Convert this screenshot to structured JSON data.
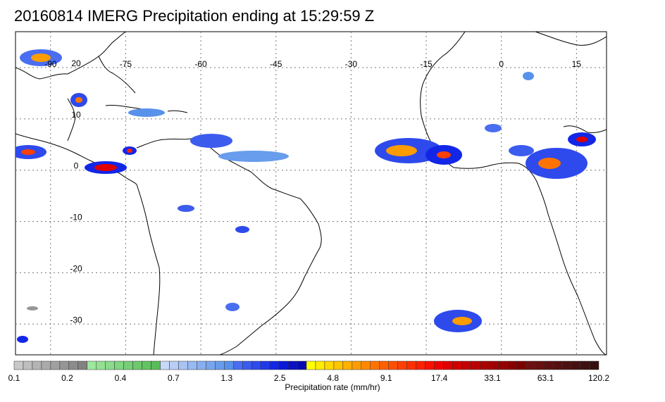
{
  "title": "20160814 IMERG Precipitation ending at 15:29:59 Z",
  "map": {
    "lon_ticks": [
      {
        "value": -90,
        "label": "-90"
      },
      {
        "value": -75,
        "label": "-75"
      },
      {
        "value": -60,
        "label": "-60"
      },
      {
        "value": -45,
        "label": "-45"
      },
      {
        "value": -30,
        "label": "-30"
      },
      {
        "value": -15,
        "label": "-15"
      },
      {
        "value": 0,
        "label": "0"
      },
      {
        "value": 15,
        "label": "15"
      }
    ],
    "lat_ticks": [
      {
        "value": 20,
        "label": "20"
      },
      {
        "value": 10,
        "label": "10"
      },
      {
        "value": 0,
        "label": "0"
      },
      {
        "value": -10,
        "label": "-10"
      },
      {
        "value": -20,
        "label": "-20"
      },
      {
        "value": -30,
        "label": "-30"
      }
    ],
    "extent": {
      "lon_min": -97,
      "lon_max": 21,
      "lat_min": -36,
      "lat_max": 27
    },
    "grid_color": "#777777"
  },
  "colorbar": {
    "label": "Precipitation rate (mm/hr)",
    "tick_labels": [
      "0.1",
      "0.2",
      "0.4",
      "0.7",
      "1.3",
      "2.5",
      "4.8",
      "9.1",
      "17.4",
      "33.1",
      "63.1",
      "120.2"
    ],
    "groups": [
      {
        "name": "gray",
        "colors": [
          "#c8c8c8",
          "#bebebe",
          "#b4b4b4",
          "#aaaaaa",
          "#a0a0a0",
          "#969696",
          "#8c8c8c",
          "#828282"
        ]
      },
      {
        "name": "green",
        "colors": [
          "#9ee79e",
          "#94e194",
          "#8adb8a",
          "#80d580",
          "#76cf76",
          "#6cc96c",
          "#62c362",
          "#58bd58"
        ]
      },
      {
        "name": "lightblue",
        "colors": [
          "#c8d8f8",
          "#b8cef6",
          "#a8c4f4",
          "#98baf2",
          "#88b0f0",
          "#78a6ee",
          "#689cec",
          "#5892ea"
        ]
      },
      {
        "name": "blue",
        "colors": [
          "#4a6ef0",
          "#3c5cee",
          "#2e4aec",
          "#2038ea",
          "#1226e8",
          "#0a18d8",
          "#0812c4",
          "#060cb0"
        ]
      },
      {
        "name": "yellow-orange",
        "colors": [
          "#ffff00",
          "#ffec00",
          "#ffd800",
          "#ffc400",
          "#ffb000",
          "#ff9c00",
          "#ff8800",
          "#ff7400"
        ]
      },
      {
        "name": "orange-red",
        "colors": [
          "#ff6000",
          "#ff5000",
          "#ff4000",
          "#ff3000",
          "#ff2000",
          "#f81000",
          "#f00000",
          "#e00000"
        ]
      },
      {
        "name": "dark-red",
        "colors": [
          "#d00000",
          "#c40000",
          "#b80000",
          "#ac0000",
          "#a00000",
          "#940000",
          "#880000",
          "#7c0000"
        ]
      },
      {
        "name": "maroon",
        "colors": [
          "#6e1010",
          "#661010",
          "#5e1010",
          "#561010",
          "#4e1010",
          "#461010",
          "#3e1010",
          "#361010"
        ]
      }
    ]
  }
}
